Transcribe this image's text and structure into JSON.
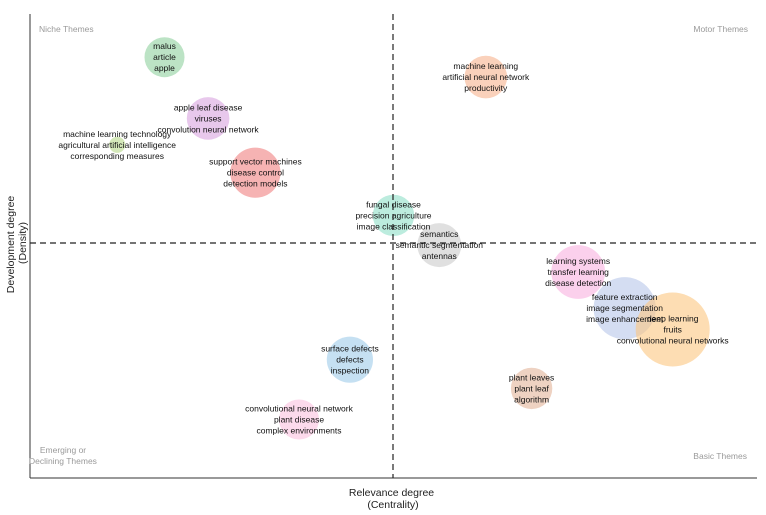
{
  "chart_data": {
    "type": "scatter",
    "title": "",
    "xlabel_lines": [
      "Relevance degree",
      "(Centrality)"
    ],
    "ylabel_lines": [
      "Development degree",
      "(Density)"
    ],
    "xlim": [
      0,
      1
    ],
    "ylim": [
      0,
      1
    ],
    "grid": false,
    "quadrant_lines": {
      "x": 0.5,
      "y": 0.5,
      "style": "dashed"
    },
    "quadrant_labels": [
      {
        "key": "top-left",
        "lines": [
          "Niche Themes"
        ]
      },
      {
        "key": "top-right",
        "lines": [
          "Motor Themes"
        ]
      },
      {
        "key": "bottom-left",
        "lines": [
          "Emerging or",
          "Declining Themes"
        ]
      },
      {
        "key": "bottom-right",
        "lines": [
          "Basic Themes"
        ]
      }
    ],
    "clusters": [
      {
        "terms": [
          "malus",
          "article",
          "apple"
        ],
        "x": 0.185,
        "y": 0.907,
        "size": 0.28,
        "color": "#8fd19e"
      },
      {
        "terms": [
          "apple leaf disease",
          "viruses",
          "convolution neural network"
        ],
        "x": 0.245,
        "y": 0.775,
        "size": 0.32,
        "color": "#d9a4e0"
      },
      {
        "terms": [
          "machine learning technology",
          "agricultural artificial intelligence",
          "corresponding measures"
        ],
        "x": 0.12,
        "y": 0.718,
        "size": 0.03,
        "color": "#b8d98a"
      },
      {
        "terms": [
          "support vector machines",
          "disease control",
          "detection models"
        ],
        "x": 0.31,
        "y": 0.658,
        "size": 0.45,
        "color": "#f08080"
      },
      {
        "terms": [
          "machine learning",
          "artificial neural network",
          "productivity"
        ],
        "x": 0.627,
        "y": 0.864,
        "size": 0.32,
        "color": "#f7b28e"
      },
      {
        "terms": [
          "fungal disease",
          "precision agriculture",
          "image classification"
        ],
        "x": 0.5,
        "y": 0.566,
        "size": 0.3,
        "color": "#8fe0c8"
      },
      {
        "terms": [
          "semantics",
          "semantic segmentation",
          "antennas"
        ],
        "x": 0.563,
        "y": 0.502,
        "size": 0.34,
        "color": "#cccccc"
      },
      {
        "terms": [
          "learning systems",
          "transfer learning",
          "disease detection"
        ],
        "x": 0.754,
        "y": 0.444,
        "size": 0.52,
        "color": "#f9b0e0"
      },
      {
        "terms": [
          "feature extraction",
          "image segmentation",
          "image enhancement"
        ],
        "x": 0.818,
        "y": 0.366,
        "size": 0.7,
        "color": "#b7c6ea"
      },
      {
        "terms": [
          "deep learning",
          "fruits",
          "convolutional neural networks"
        ],
        "x": 0.884,
        "y": 0.32,
        "size": 1.0,
        "color": "#fcc781"
      },
      {
        "terms": [
          "surface defects",
          "defects",
          "inspection"
        ],
        "x": 0.44,
        "y": 0.255,
        "size": 0.38,
        "color": "#9ecbea"
      },
      {
        "terms": [
          "plant leaves",
          "plant leaf",
          "algorithm"
        ],
        "x": 0.69,
        "y": 0.193,
        "size": 0.3,
        "color": "#e3b499"
      },
      {
        "terms": [
          "convolutional neural network",
          "plant disease",
          "complex environments"
        ],
        "x": 0.37,
        "y": 0.126,
        "size": 0.28,
        "color": "#fac2e0"
      }
    ]
  }
}
